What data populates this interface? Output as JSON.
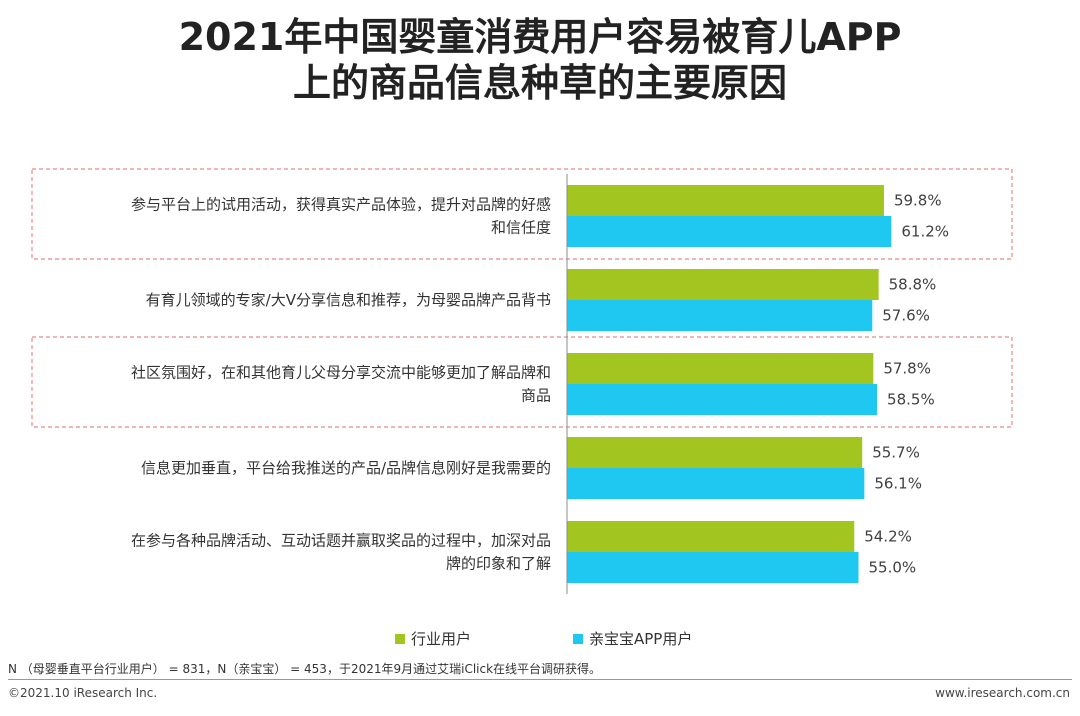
{
  "title_line1": "2021年中国婴童消费用户容易被育儿APP",
  "title_line2": "上的商品信息种草的主要原因",
  "chart_data": {
    "type": "bar",
    "orientation": "horizontal",
    "categories": [
      [
        "参与平台上的试用活动，获得真实产品体验，提升对品牌的好感",
        "和信任度"
      ],
      [
        "有育儿领域的专家/大V分享信息和推荐，为母婴品牌产品背书"
      ],
      [
        "社区氛围好，在和其他育儿父母分享交流中能够更加了解品牌和",
        "商品"
      ],
      [
        "信息更加垂直，平台给我推送的产品/品牌信息刚好是我需要的"
      ],
      [
        "在参与各种品牌活动、互动话题并赢取奖品的过程中，加深对品",
        "牌的印象和了解"
      ]
    ],
    "series": [
      {
        "name": "行业用户",
        "values": [
          59.8,
          58.8,
          57.8,
          55.7,
          54.2
        ],
        "labels": [
          "59.8%",
          "58.8%",
          "57.8%",
          "55.7%",
          "54.2%"
        ],
        "color": "#a2c61f"
      },
      {
        "name": "亲宝宝APP用户",
        "values": [
          61.2,
          57.6,
          58.5,
          56.1,
          55.0
        ],
        "labels": [
          "61.2%",
          "57.6%",
          "58.5%",
          "56.1%",
          "55.0%"
        ],
        "color": "#1ec8f0"
      }
    ],
    "highlighted_categories": [
      0,
      2
    ],
    "legend_position": "bottom"
  },
  "note": "N （母婴垂直平台行业用户） = 831，N（亲宝宝） = 453，于2021年9月通过艾瑞iClick在线平台调研获得。",
  "footer_left": "©2021.10 iResearch Inc.",
  "footer_right": "www.iresearch.com.cn"
}
